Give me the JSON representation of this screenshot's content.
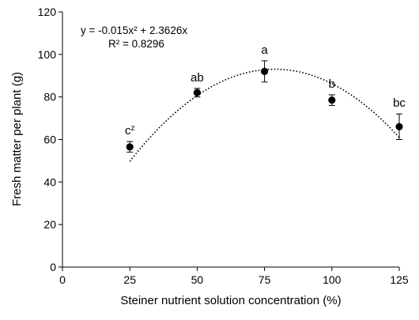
{
  "chart_data": {
    "type": "scatter",
    "xlabel": "Steiner nutrient solution concentration (%)",
    "ylabel": "Fresh matter per plant (g)",
    "xlim": [
      0,
      125
    ],
    "ylim": [
      0,
      120
    ],
    "x_ticks": [
      0,
      25,
      50,
      75,
      100,
      125
    ],
    "y_ticks": [
      0,
      20,
      40,
      60,
      80,
      100,
      120
    ],
    "grid": false,
    "points": [
      {
        "x": 25,
        "y": 56.5,
        "err": 2.5,
        "label": "c",
        "label_sup": "z"
      },
      {
        "x": 50,
        "y": 82,
        "err": 2,
        "label": "ab",
        "label_sup": ""
      },
      {
        "x": 75,
        "y": 92,
        "err": 5,
        "label": "a",
        "label_sup": ""
      },
      {
        "x": 100,
        "y": 78.5,
        "err": 2.5,
        "label": "b",
        "label_sup": ""
      },
      {
        "x": 125,
        "y": 66,
        "err": 6,
        "label": "bc",
        "label_sup": ""
      }
    ],
    "trendline": {
      "type": "polynomial",
      "a": -0.015,
      "b": 2.3626,
      "c": 0,
      "x_range": [
        25,
        125
      ],
      "equation": "y = -0.015x² + 2.3626x",
      "r2": "R² = 0.8296"
    }
  }
}
